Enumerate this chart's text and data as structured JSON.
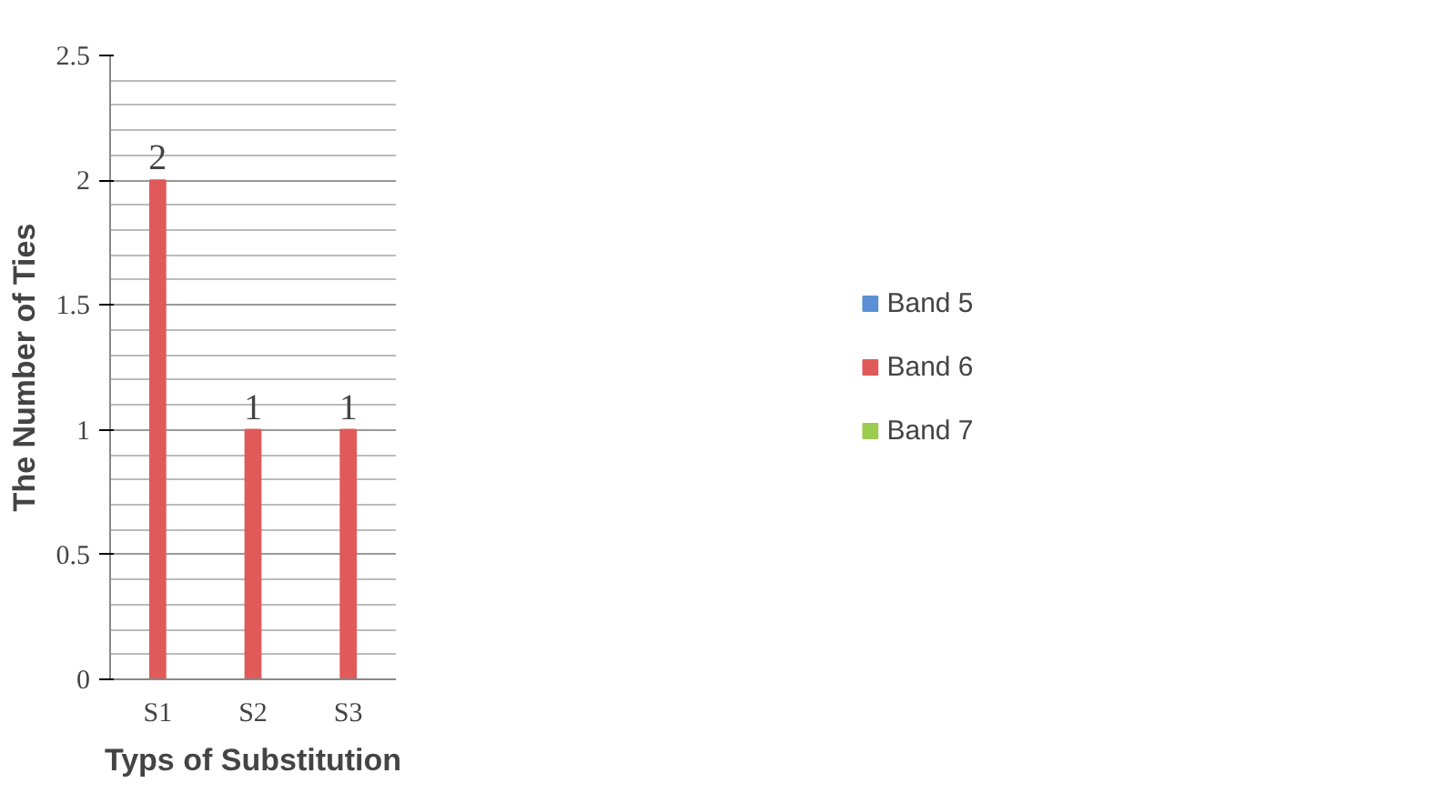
{
  "chart_data": {
    "type": "bar",
    "xlabel": "Typs of Substitution",
    "ylabel": "The Number of Ties",
    "categories": [
      "S1",
      "S2",
      "S3"
    ],
    "series": [
      {
        "name": "Band 5",
        "color": "#5b8fd6",
        "values": [
          0,
          0,
          0
        ]
      },
      {
        "name": "Band 6",
        "color": "#e05a5a",
        "values": [
          2,
          1,
          1
        ],
        "value_labels": [
          "2",
          "1",
          "1"
        ]
      },
      {
        "name": "Band 7",
        "color": "#9bcb4f",
        "values": [
          0,
          0,
          0
        ]
      }
    ],
    "ylim": [
      0,
      2.5
    ],
    "yticks": [
      0,
      0.5,
      1,
      1.5,
      2,
      2.5
    ],
    "grid": "y",
    "legend": "right"
  }
}
